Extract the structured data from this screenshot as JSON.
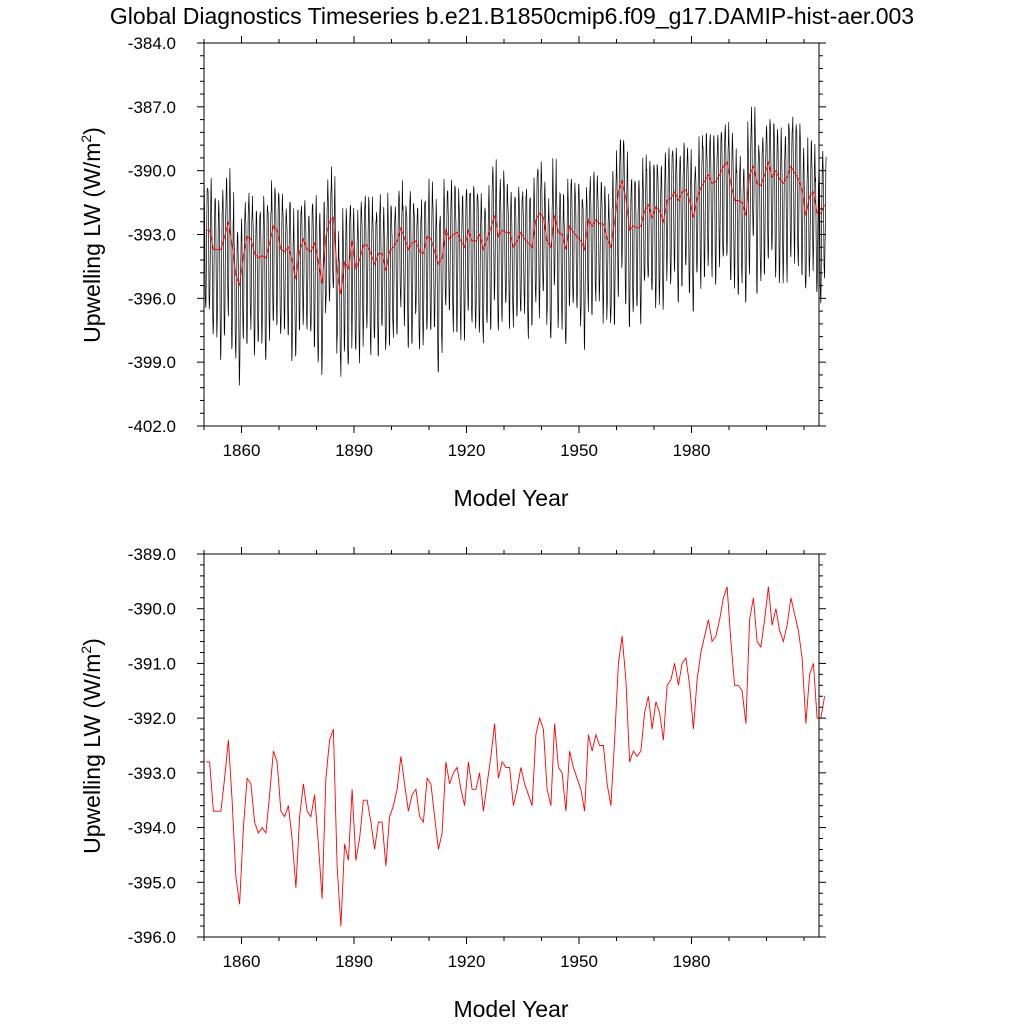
{
  "figure": {
    "title": "Global Diagnostics Timeseries b.e21.B1850cmip6.f09_g17.DAMIP-hist-aer.003"
  },
  "chart_data": [
    {
      "type": "line",
      "name": "monthly-and-annual",
      "xlabel": "Model Year",
      "ylabel": "Upwelling LW (W/m²)",
      "ylabel_main": "Upwelling LW (W/m",
      "ylabel_sup": "2",
      "ylabel_close": ")",
      "xlim": [
        1850,
        2014
      ],
      "ylim": [
        -402.0,
        -384.0
      ],
      "xticks": [
        1860,
        1890,
        1920,
        1950,
        1980
      ],
      "yticks": [
        -384.0,
        -387.0,
        -390.0,
        -393.0,
        -396.0,
        -399.0,
        -402.0
      ],
      "ytick_labels": [
        "-384.0",
        "-387.0",
        "-390.0",
        "-393.0",
        "-396.0",
        "-399.0",
        "-402.0"
      ],
      "monthly_cycle": {
        "note_type": "seasonal-envelope",
        "max_offset_above_annual": 2.4,
        "min_offset_below_annual": 4.6,
        "color": "#000000"
      },
      "annual_color": "#ff0000"
    },
    {
      "type": "line",
      "name": "annual",
      "xlabel": "Model Year",
      "ylabel": "Upwelling LW (W/m²)",
      "ylabel_main": "Upwelling LW (W/m",
      "ylabel_sup": "2",
      "ylabel_close": ")",
      "xlim": [
        1850,
        2014
      ],
      "ylim": [
        -396.0,
        -389.0
      ],
      "xticks": [
        1860,
        1890,
        1920,
        1950,
        1980
      ],
      "yticks": [
        -389.0,
        -390.0,
        -391.0,
        -392.0,
        -393.0,
        -394.0,
        -395.0,
        -396.0
      ],
      "ytick_labels": [
        "-389.0",
        "-390.0",
        "-391.0",
        "-392.0",
        "-393.0",
        "-394.0",
        "-395.0",
        "-396.0"
      ],
      "color": "#ff0000"
    }
  ],
  "annual_series": {
    "x_start": 1850,
    "x_step": 1,
    "values": [
      -392.8,
      -392.8,
      -393.7,
      -393.7,
      -393.7,
      -393.1,
      -392.4,
      -393.5,
      -394.9,
      -395.4,
      -394.0,
      -393.1,
      -393.2,
      -393.9,
      -394.1,
      -394.0,
      -394.1,
      -393.4,
      -392.6,
      -392.8,
      -393.7,
      -393.8,
      -393.6,
      -394.2,
      -395.1,
      -393.8,
      -393.2,
      -393.7,
      -393.8,
      -393.4,
      -394.3,
      -395.3,
      -393.1,
      -392.4,
      -392.2,
      -394.7,
      -395.8,
      -394.3,
      -394.6,
      -393.3,
      -394.6,
      -394.2,
      -393.5,
      -393.5,
      -393.9,
      -394.4,
      -393.9,
      -393.9,
      -394.7,
      -393.8,
      -393.6,
      -393.3,
      -392.7,
      -393.2,
      -393.7,
      -393.4,
      -393.3,
      -393.8,
      -393.9,
      -393.1,
      -393.2,
      -393.8,
      -394.4,
      -394.1,
      -392.8,
      -393.2,
      -393.0,
      -392.9,
      -393.3,
      -393.6,
      -392.8,
      -393.3,
      -393.3,
      -393.0,
      -393.7,
      -393.2,
      -392.7,
      -392.1,
      -393.1,
      -392.8,
      -392.9,
      -392.9,
      -393.6,
      -393.3,
      -392.9,
      -393.2,
      -393.4,
      -393.6,
      -392.3,
      -392.0,
      -392.2,
      -393.3,
      -393.6,
      -392.1,
      -392.9,
      -393.0,
      -393.7,
      -392.6,
      -392.9,
      -393.1,
      -393.3,
      -393.7,
      -392.3,
      -392.6,
      -392.3,
      -392.5,
      -392.5,
      -393.2,
      -393.6,
      -392.4,
      -391.0,
      -390.5,
      -391.3,
      -392.8,
      -392.6,
      -392.7,
      -392.6,
      -391.9,
      -391.6,
      -392.2,
      -391.7,
      -391.9,
      -392.4,
      -391.4,
      -391.3,
      -391.0,
      -391.4,
      -391.0,
      -390.9,
      -391.4,
      -392.2,
      -391.3,
      -390.8,
      -390.5,
      -390.2,
      -390.6,
      -390.5,
      -390.2,
      -389.8,
      -389.6,
      -390.6,
      -391.4,
      -391.4,
      -391.5,
      -392.1,
      -390.2,
      -389.8,
      -390.6,
      -390.7,
      -390.2,
      -389.6,
      -390.3,
      -390.0,
      -390.4,
      -390.6,
      -390.3,
      -389.8,
      -390.1,
      -390.4,
      -390.9,
      -392.1,
      -391.2,
      -391.0,
      -392.0,
      -392.0,
      -391.6
    ]
  }
}
